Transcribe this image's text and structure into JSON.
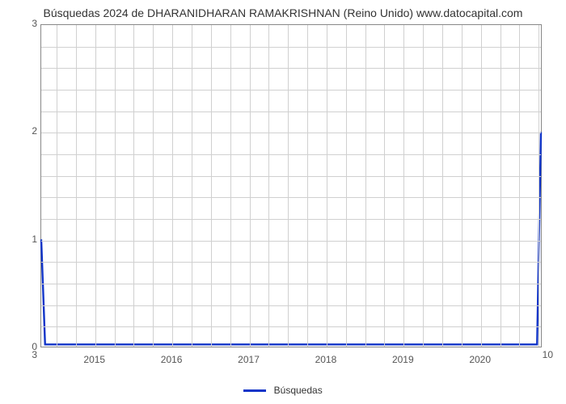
{
  "chart": {
    "type": "line",
    "title": "Búsquedas 2024 de DHARANIDHARAN RAMAKRISHNAN (Reino Unido) www.datocapital.com",
    "title_fontsize": 14,
    "background_color": "#ffffff",
    "grid_color": "#d0d0d0",
    "axis_color": "#888888",
    "line_color": "#1034c8",
    "line_width": 2.4,
    "xlim": [
      2014.3,
      2020.8
    ],
    "ylim": [
      0,
      3
    ],
    "yticks": [
      0,
      1,
      2,
      3
    ],
    "y_minor_per_major": 4,
    "xticks": [
      2015,
      2016,
      2017,
      2018,
      2019,
      2020
    ],
    "x_minor_per_major": 3,
    "corner_left_label": "3",
    "corner_right_label": "10",
    "series": {
      "name": "Búsquedas",
      "x": [
        2014.3,
        2014.35,
        2014.4,
        2020.7,
        2020.75,
        2020.8
      ],
      "y": [
        1.0,
        0.02,
        0.02,
        0.02,
        0.02,
        2.0
      ]
    },
    "legend_label": "Búsquedas",
    "label_fontsize": 12
  }
}
